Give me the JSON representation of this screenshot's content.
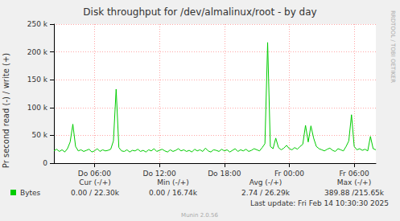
{
  "chart_data": {
    "type": "line",
    "title": "Disk throughput for /dev/almalinux/root - by day",
    "y_label": "Pr second read (-) / write (+)",
    "side_text": "RRDTOOL / TOBI OETIKER",
    "categories": [
      null,
      null,
      null,
      null,
      null,
      null,
      null,
      null,
      null,
      null,
      null,
      null,
      null,
      null,
      null,
      "Do 06:00",
      null,
      null,
      null,
      null,
      null,
      null,
      null,
      null,
      null,
      null,
      null,
      null,
      null,
      null,
      null,
      null,
      null,
      null,
      null,
      null,
      null,
      null,
      null,
      "Do 12:00",
      null,
      null,
      null,
      null,
      null,
      null,
      null,
      null,
      null,
      null,
      null,
      null,
      null,
      null,
      null,
      null,
      null,
      null,
      null,
      null,
      null,
      null,
      null,
      "Do 18:00",
      null,
      null,
      null,
      null,
      null,
      null,
      null,
      null,
      null,
      null,
      null,
      null,
      null,
      null,
      null,
      null,
      null,
      null,
      null,
      null,
      null,
      null,
      null,
      "Fr 00:00",
      null,
      null,
      null,
      null,
      null,
      null,
      null,
      null,
      null,
      null,
      null,
      null,
      null,
      null,
      null,
      null,
      null,
      null,
      null,
      null,
      null,
      null,
      null,
      "Fr 06:00",
      null,
      null,
      null,
      null,
      null,
      null,
      null,
      null
    ],
    "series": [
      {
        "name": "Bytes",
        "color": "#00cc00",
        "values": [
          22000,
          25000,
          21000,
          24000,
          20000,
          26000,
          38000,
          70000,
          30000,
          22000,
          24000,
          21000,
          23000,
          25000,
          20000,
          22000,
          26000,
          21000,
          24000,
          22000,
          23000,
          25000,
          40000,
          133000,
          28000,
          22000,
          21000,
          24000,
          20000,
          23000,
          22000,
          25000,
          21000,
          23000,
          20000,
          24000,
          22000,
          26000,
          21000,
          23000,
          25000,
          22000,
          20000,
          24000,
          21000,
          23000,
          26000,
          22000,
          24000,
          21000,
          23000,
          20000,
          25000,
          22000,
          24000,
          21000,
          27000,
          22000,
          20000,
          24000,
          23000,
          21000,
          25000,
          22000,
          24000,
          20000,
          23000,
          26000,
          21000,
          24000,
          22000,
          25000,
          21000,
          23000,
          26000,
          24000,
          22000,
          28000,
          35000,
          217000,
          30000,
          26000,
          45000,
          28000,
          24000,
          27000,
          32000,
          26000,
          24000,
          28000,
          25000,
          30000,
          34000,
          68000,
          38000,
          67000,
          45000,
          30000,
          26000,
          24000,
          22000,
          25000,
          27000,
          23000,
          21000,
          26000,
          24000,
          22000,
          30000,
          40000,
          87000,
          30000,
          24000,
          26000,
          23000,
          25000,
          22000,
          48000,
          26000,
          24000
        ]
      }
    ],
    "ylim": [
      0,
      250000
    ],
    "yticks": [
      0,
      {
        "value": 50000,
        "label": "50 k"
      },
      {
        "value": 100000,
        "label": "100 k"
      },
      {
        "value": 150000,
        "label": "150 k"
      },
      {
        "value": 200000,
        "label": "200 k"
      },
      {
        "value": 250000,
        "label": "250 k"
      }
    ],
    "grid": true,
    "legend_table": {
      "headers": [
        "Cur (-/+)",
        "Min (-/+)",
        "Avg (-/+)",
        "Max (-/+)"
      ],
      "rows": [
        {
          "name": "Bytes",
          "cells": [
            "0.00 / 22.30k",
            "0.00 / 16.74k",
            "2.74 / 26.29k",
            "389.88 /215.65k"
          ]
        }
      ]
    },
    "last_update": "Last update: Fri Feb 14 10:30:30 2025",
    "footer": "Munin 2.0.56"
  }
}
